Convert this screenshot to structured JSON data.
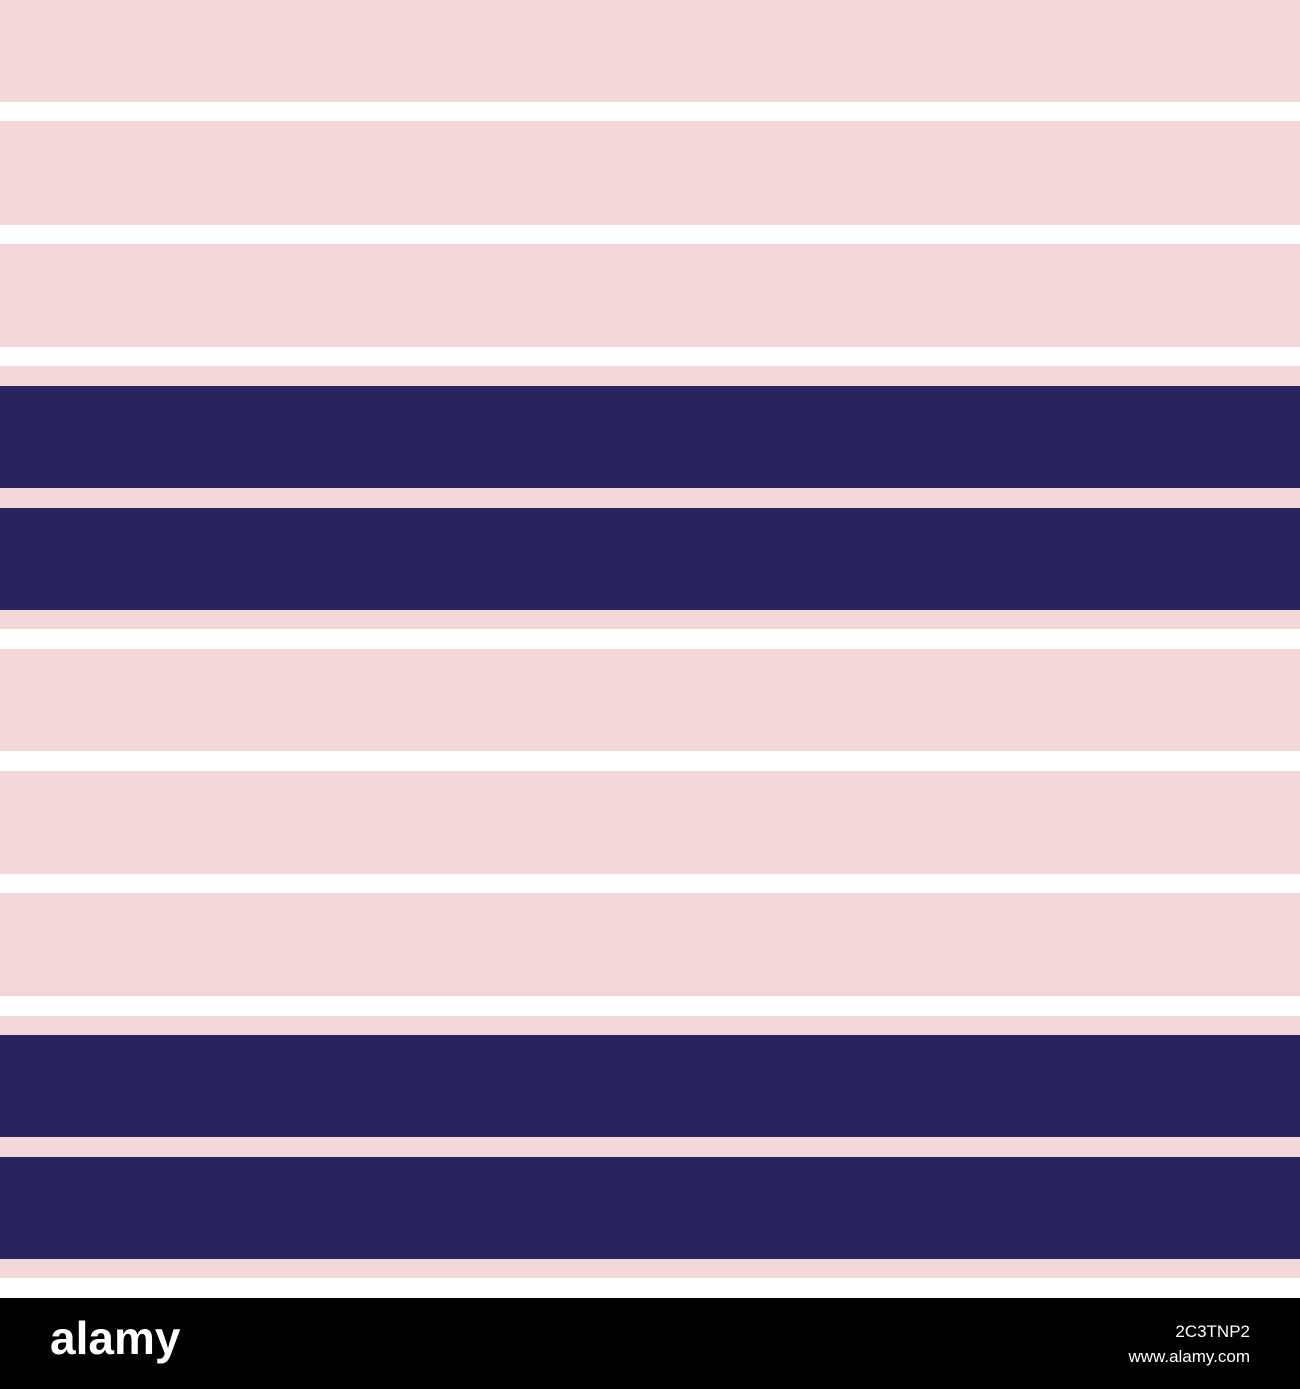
{
  "footer": {
    "logo": "alamy",
    "image_id": "2C3TNP2",
    "url": "www.alamy.com"
  }
}
